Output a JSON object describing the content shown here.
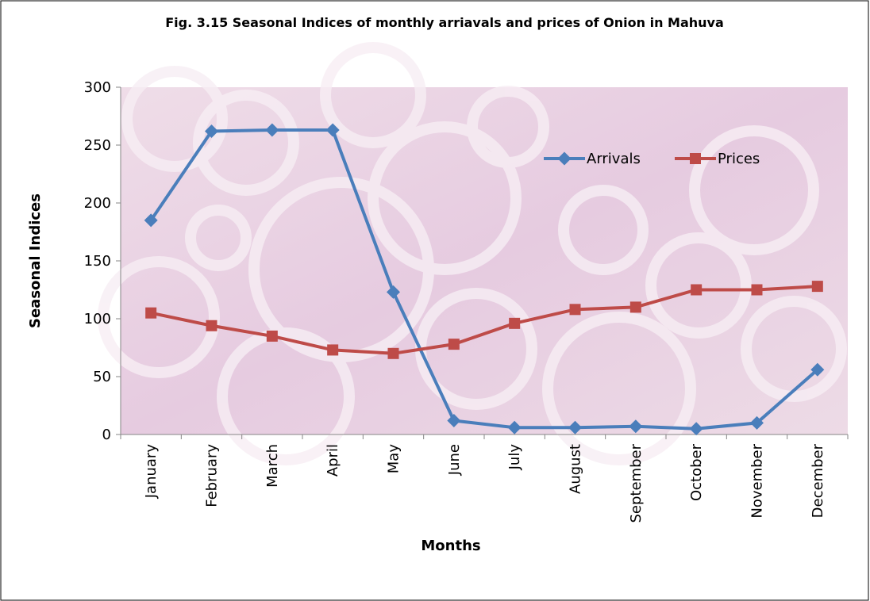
{
  "chart_data": {
    "type": "line",
    "title": "Fig. 3.15 Seasonal Indices of monthly arriavals  and prices of Onion in Mahuva",
    "x_label": "Months",
    "y_label": "Seasonal Indices",
    "categories": [
      "January",
      "February",
      "March",
      "April",
      "May",
      "June",
      "July",
      "August",
      "September",
      "October",
      "November",
      "December"
    ],
    "series": [
      {
        "name": "Arrivals",
        "color": "#4a7ebb",
        "values": [
          185,
          262,
          263,
          263,
          123,
          12,
          6,
          6,
          7,
          5,
          10,
          56
        ]
      },
      {
        "name": "Prices",
        "color": "#be4b48",
        "values": [
          105,
          94,
          85,
          73,
          70,
          78,
          96,
          108,
          110,
          125,
          125,
          128
        ]
      }
    ],
    "ylim": [
      0,
      300
    ],
    "yticks": [
      0,
      50,
      100,
      150,
      200,
      250,
      300
    ],
    "legend": "upper right"
  }
}
